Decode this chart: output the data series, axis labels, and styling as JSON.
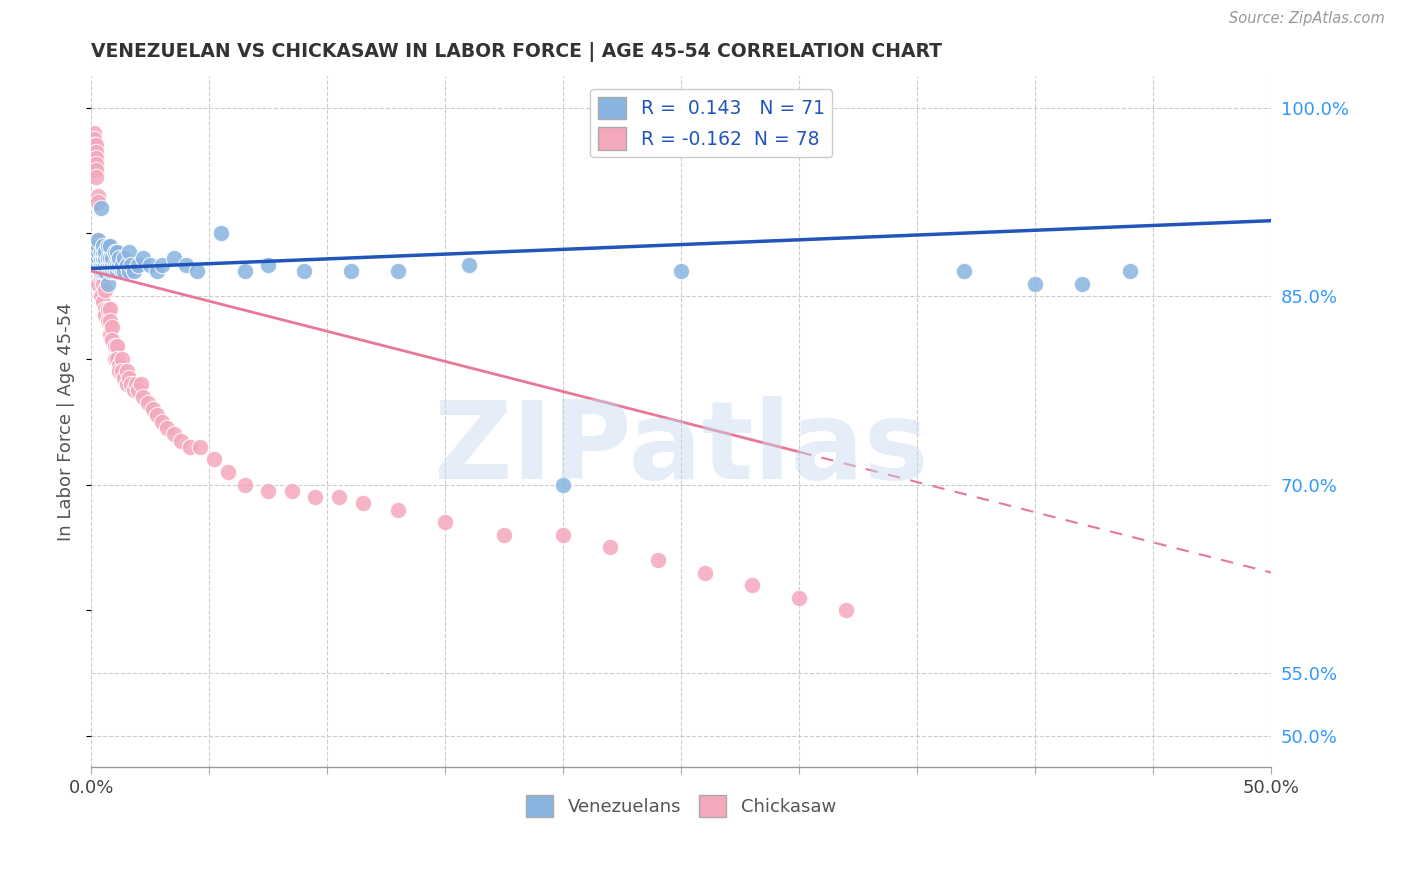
{
  "title": "VENEZUELAN VS CHICKASAW IN LABOR FORCE | AGE 45-54 CORRELATION CHART",
  "source": "Source: ZipAtlas.com",
  "ylabel": "In Labor Force | Age 45-54",
  "xlim": [
    0.0,
    0.5
  ],
  "ylim": [
    0.475,
    1.025
  ],
  "xticks": [
    0.0,
    0.05,
    0.1,
    0.15,
    0.2,
    0.25,
    0.3,
    0.35,
    0.4,
    0.45,
    0.5
  ],
  "yticks_right": [
    0.5,
    0.55,
    0.7,
    0.85,
    1.0
  ],
  "ytick_right_labels": [
    "50.0%",
    "55.0%",
    "70.0%",
    "85.0%",
    "100.0%"
  ],
  "R_venezuelan": 0.143,
  "N_venezuelan": 71,
  "R_chickasaw": -0.162,
  "N_chickasaw": 78,
  "venezuelan_color": "#89b4e0",
  "chickasaw_color": "#f4a8bc",
  "trend_blue": "#2255bb",
  "trend_pink": "#e87898",
  "watermark": "ZIPatlas",
  "watermark_color": "#c5d8f0",
  "legend_label_venezuelan": "Venezuelans",
  "legend_label_chickasaw": "Chickasaw",
  "venezuelan_x": [
    0.002,
    0.002,
    0.002,
    0.003,
    0.003,
    0.003,
    0.003,
    0.003,
    0.004,
    0.004,
    0.004,
    0.004,
    0.004,
    0.005,
    0.005,
    0.005,
    0.005,
    0.005,
    0.006,
    0.006,
    0.006,
    0.006,
    0.007,
    0.007,
    0.007,
    0.007,
    0.008,
    0.008,
    0.008,
    0.008,
    0.009,
    0.009,
    0.009,
    0.01,
    0.01,
    0.01,
    0.011,
    0.011,
    0.011,
    0.012,
    0.012,
    0.013,
    0.013,
    0.014,
    0.014,
    0.015,
    0.016,
    0.016,
    0.017,
    0.018,
    0.02,
    0.022,
    0.025,
    0.028,
    0.03,
    0.035,
    0.04,
    0.045,
    0.055,
    0.065,
    0.075,
    0.09,
    0.11,
    0.13,
    0.16,
    0.2,
    0.25,
    0.37,
    0.4,
    0.42,
    0.44
  ],
  "venezuelan_y": [
    0.88,
    0.88,
    0.89,
    0.875,
    0.88,
    0.885,
    0.89,
    0.895,
    0.87,
    0.875,
    0.88,
    0.885,
    0.92,
    0.87,
    0.875,
    0.88,
    0.885,
    0.89,
    0.87,
    0.875,
    0.88,
    0.885,
    0.86,
    0.875,
    0.88,
    0.89,
    0.87,
    0.875,
    0.88,
    0.89,
    0.87,
    0.875,
    0.88,
    0.87,
    0.875,
    0.885,
    0.87,
    0.875,
    0.885,
    0.875,
    0.88,
    0.87,
    0.875,
    0.87,
    0.88,
    0.875,
    0.87,
    0.885,
    0.875,
    0.87,
    0.875,
    0.88,
    0.875,
    0.87,
    0.875,
    0.88,
    0.875,
    0.87,
    0.9,
    0.87,
    0.875,
    0.87,
    0.87,
    0.87,
    0.875,
    0.7,
    0.87,
    0.87,
    0.86,
    0.86,
    0.87
  ],
  "chickasaw_x": [
    0.001,
    0.001,
    0.001,
    0.001,
    0.002,
    0.002,
    0.002,
    0.002,
    0.002,
    0.002,
    0.003,
    0.003,
    0.003,
    0.003,
    0.003,
    0.004,
    0.004,
    0.004,
    0.004,
    0.005,
    0.005,
    0.005,
    0.005,
    0.006,
    0.006,
    0.006,
    0.007,
    0.007,
    0.008,
    0.008,
    0.008,
    0.009,
    0.009,
    0.01,
    0.01,
    0.011,
    0.011,
    0.012,
    0.012,
    0.013,
    0.013,
    0.014,
    0.015,
    0.015,
    0.016,
    0.017,
    0.018,
    0.019,
    0.02,
    0.021,
    0.022,
    0.024,
    0.026,
    0.028,
    0.03,
    0.032,
    0.035,
    0.038,
    0.042,
    0.046,
    0.052,
    0.058,
    0.065,
    0.075,
    0.085,
    0.095,
    0.105,
    0.115,
    0.13,
    0.15,
    0.175,
    0.2,
    0.22,
    0.24,
    0.26,
    0.28,
    0.3,
    0.32
  ],
  "chickasaw_y": [
    0.98,
    0.975,
    0.97,
    0.965,
    0.97,
    0.965,
    0.96,
    0.955,
    0.95,
    0.945,
    0.93,
    0.925,
    0.895,
    0.875,
    0.86,
    0.875,
    0.87,
    0.865,
    0.85,
    0.87,
    0.865,
    0.86,
    0.845,
    0.855,
    0.84,
    0.835,
    0.84,
    0.83,
    0.84,
    0.83,
    0.82,
    0.825,
    0.815,
    0.81,
    0.8,
    0.81,
    0.8,
    0.795,
    0.79,
    0.8,
    0.79,
    0.785,
    0.79,
    0.78,
    0.785,
    0.78,
    0.775,
    0.78,
    0.775,
    0.78,
    0.77,
    0.765,
    0.76,
    0.755,
    0.75,
    0.745,
    0.74,
    0.735,
    0.73,
    0.73,
    0.72,
    0.71,
    0.7,
    0.695,
    0.695,
    0.69,
    0.69,
    0.685,
    0.68,
    0.67,
    0.66,
    0.66,
    0.65,
    0.64,
    0.63,
    0.62,
    0.61,
    0.6
  ],
  "trend_ven_x0": 0.0,
  "trend_ven_y0": 0.872,
  "trend_ven_x1": 0.5,
  "trend_ven_y1": 0.91,
  "trend_chi_x0": 0.0,
  "trend_chi_y0": 0.87,
  "trend_chi_x1": 0.5,
  "trend_chi_y1": 0.63,
  "trend_chi_solid_end": 0.3
}
